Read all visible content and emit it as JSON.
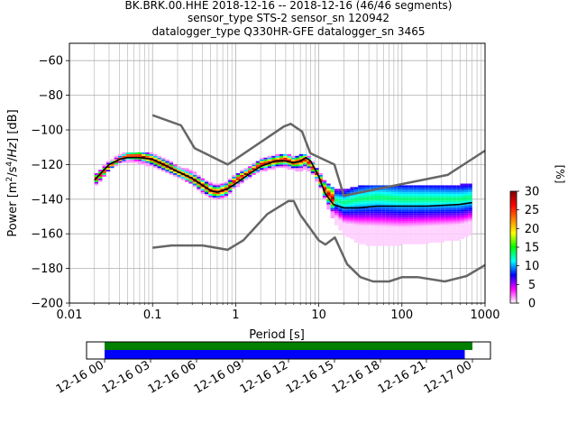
{
  "title": {
    "line1": "BK.BRK.00.HHE   2018-12-16 -- 2018-12-16  (46/46 segments)",
    "line2": "sensor_type STS-2 sensor_sn 120942",
    "line3": "datalogger_type Q330HR-GFE datalogger_sn 3465"
  },
  "chart_data": [
    {
      "type": "heatmap",
      "subtype": "ppsd",
      "xlabel": "Period [s]",
      "ylabel": "Power [m2/s4/Hz] [dB]",
      "xscale": "log",
      "xlim": [
        0.01,
        1000
      ],
      "ylim": [
        -200,
        -50
      ],
      "xticks": [
        0.01,
        0.1,
        1,
        10,
        100,
        1000
      ],
      "xtick_labels": [
        "0.01",
        "0.1",
        "1",
        "10",
        "100",
        "1000"
      ],
      "yticks": [
        -200,
        -180,
        -160,
        -140,
        -120,
        -100,
        -80,
        -60
      ],
      "ytick_labels": [
        "−200",
        "−180",
        "−160",
        "−140",
        "−120",
        "−100",
        "−80",
        "−60"
      ],
      "grid": true,
      "colorbar": {
        "label": "[%]",
        "range": [
          0,
          30
        ],
        "ticks": [
          0,
          5,
          10,
          15,
          20,
          25,
          30
        ],
        "colormap": [
          "#ffffff",
          "#ff00ff",
          "#0000ff",
          "#00ffff",
          "#00ff00",
          "#ffff00",
          "#ff8000",
          "#ff0000",
          "#800000"
        ]
      },
      "density_band": {
        "period": [
          0.02,
          0.025,
          0.03,
          0.04,
          0.05,
          0.07,
          0.1,
          0.15,
          0.2,
          0.3,
          0.4,
          0.5,
          0.6,
          0.8,
          1.0,
          1.5,
          2,
          3,
          4,
          5,
          6,
          7,
          8,
          10,
          12,
          15,
          20,
          30,
          50,
          100,
          200,
          500,
          700
        ],
        "low": [
          -132,
          -128,
          -123,
          -119,
          -118,
          -119,
          -121,
          -124,
          -127,
          -131,
          -136,
          -139,
          -140,
          -138,
          -133,
          -127,
          -124,
          -122,
          -122,
          -123,
          -124,
          -122,
          -124,
          -131,
          -141,
          -152,
          -160,
          -165,
          -167,
          -166,
          -165,
          -163,
          -160
        ],
        "high": [
          -126,
          -122,
          -118,
          -115,
          -113,
          -113,
          -114,
          -117,
          -121,
          -124,
          -128,
          -131,
          -132,
          -130,
          -126,
          -121,
          -117,
          -115,
          -114,
          -116,
          -115,
          -114,
          -117,
          -124,
          -130,
          -134,
          -135,
          -133,
          -132,
          -132,
          -132,
          -132,
          -131
        ],
        "mode": [
          -129,
          -125,
          -121,
          -117,
          -115,
          -115,
          -117,
          -121,
          -124,
          -128,
          -132,
          -135,
          -136,
          -134,
          -129,
          -124,
          -120,
          -118,
          -117,
          -119,
          -118,
          -117,
          -120,
          -127,
          -135,
          -140,
          -142,
          -140,
          -139,
          -140,
          -140,
          -140,
          -139
        ]
      },
      "mean_curve": {
        "period": [
          0.02,
          0.025,
          0.03,
          0.04,
          0.05,
          0.07,
          0.1,
          0.15,
          0.2,
          0.3,
          0.4,
          0.5,
          0.6,
          0.8,
          1.0,
          1.5,
          2,
          3,
          4,
          5,
          6,
          7,
          8,
          10,
          12,
          15,
          20,
          30,
          50,
          100,
          200,
          500,
          700
        ],
        "power": [
          -129,
          -124,
          -120,
          -117,
          -116,
          -116,
          -117,
          -121,
          -124,
          -128,
          -132,
          -135,
          -136,
          -134,
          -131,
          -125,
          -121,
          -118,
          -118,
          -119,
          -118,
          -116,
          -118,
          -127,
          -137,
          -143,
          -145,
          -145,
          -144,
          -144,
          -144,
          -143,
          -142
        ]
      },
      "nhnm": {
        "period": [
          0.1,
          0.22,
          0.32,
          0.8,
          3.8,
          4.6,
          6.3,
          7.9,
          15.4,
          20,
          354.8,
          1000
        ],
        "power": [
          -91.5,
          -97.4,
          -110.5,
          -120,
          -98,
          -96.5,
          -101,
          -113.5,
          -120,
          -138,
          -126,
          -112
        ]
      },
      "nlnm": {
        "period": [
          0.1,
          0.17,
          0.4,
          0.8,
          1.24,
          2.4,
          4.3,
          5.0,
          6.0,
          10.0,
          12.0,
          15.6,
          21.9,
          31.6,
          45,
          70,
          101,
          154,
          328,
          600,
          1000
        ],
        "power": [
          -168,
          -166.7,
          -166.7,
          -169.2,
          -163.7,
          -148.6,
          -141.1,
          -141.1,
          -149,
          -163.8,
          -166.2,
          -162.1,
          -177.5,
          -185,
          -187.5,
          -187.5,
          -185,
          -185,
          -187.5,
          -184.4,
          -178
        ]
      }
    },
    {
      "type": "timeline",
      "xlim": [
        "12-16 00",
        "12-17 00"
      ],
      "tick_labels": [
        "12-16 00",
        "12-16 03",
        "12-16 06",
        "12-16 09",
        "12-16 12",
        "12-16 15",
        "12-16 18",
        "12-16 21",
        "12-17 00"
      ],
      "series": [
        {
          "color": "#008000",
          "start_hour": 0,
          "end_hour": 24
        },
        {
          "color": "#0000ff",
          "start_hour": 0,
          "end_hour": 23.5
        }
      ]
    }
  ]
}
